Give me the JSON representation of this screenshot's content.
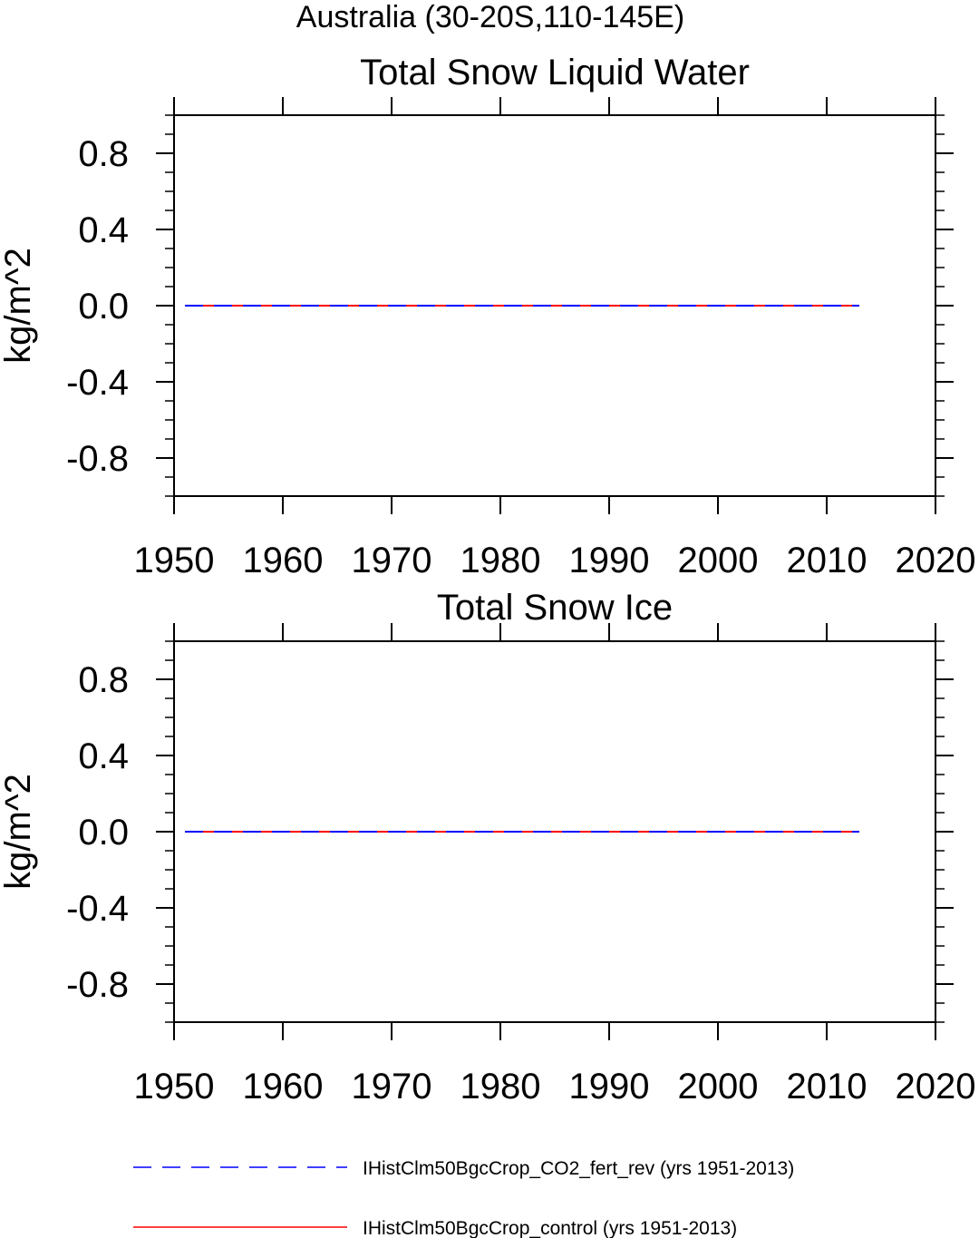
{
  "figure_title": "Australia (30-20S,110-145E)",
  "legend": {
    "items": [
      {
        "label": "IHistClm50BgcCrop_CO2_fert_rev (yrs 1951-2013)",
        "color": "#0000ff",
        "style": "dashed"
      },
      {
        "label": "IHistClm50BgcCrop_control (yrs 1951-2013)",
        "color": "#ff0000",
        "style": "solid"
      }
    ]
  },
  "chart_data": [
    {
      "type": "line",
      "title": "Total Snow Liquid Water",
      "xlabel": "",
      "ylabel": "kg/m^2",
      "xlim": [
        1950,
        2020
      ],
      "ylim": [
        -1.0,
        1.0
      ],
      "xticks": [
        1950,
        1960,
        1970,
        1980,
        1990,
        2000,
        2010,
        2020
      ],
      "yticks": [
        0.8,
        0.4,
        0.0,
        -0.4,
        -0.8
      ],
      "ytick_labels": [
        "0.8",
        "0.4",
        "0.0",
        "-0.4",
        "-0.8"
      ],
      "grid": false,
      "series": [
        {
          "name": "IHistClm50BgcCrop_CO2_fert_rev (yrs 1951-2013)",
          "color": "#0000ff",
          "style": "dashed",
          "x": [
            1951,
            2013
          ],
          "y": [
            0.0,
            0.0
          ]
        },
        {
          "name": "IHistClm50BgcCrop_control (yrs 1951-2013)",
          "color": "#ff0000",
          "style": "solid",
          "x": [
            1951,
            2013
          ],
          "y": [
            0.0,
            0.0
          ]
        }
      ]
    },
    {
      "type": "line",
      "title": "Total Snow Ice",
      "xlabel": "",
      "ylabel": "kg/m^2",
      "xlim": [
        1950,
        2020
      ],
      "ylim": [
        -1.0,
        1.0
      ],
      "xticks": [
        1950,
        1960,
        1970,
        1980,
        1990,
        2000,
        2010,
        2020
      ],
      "yticks": [
        0.8,
        0.4,
        0.0,
        -0.4,
        -0.8
      ],
      "ytick_labels": [
        "0.8",
        "0.4",
        "0.0",
        "-0.4",
        "-0.8"
      ],
      "grid": false,
      "series": [
        {
          "name": "IHistClm50BgcCrop_CO2_fert_rev (yrs 1951-2013)",
          "color": "#0000ff",
          "style": "dashed",
          "x": [
            1951,
            2013
          ],
          "y": [
            0.0,
            0.0
          ]
        },
        {
          "name": "IHistClm50BgcCrop_control (yrs 1951-2013)",
          "color": "#ff0000",
          "style": "solid",
          "x": [
            1951,
            2013
          ],
          "y": [
            0.0,
            0.0
          ]
        }
      ]
    }
  ]
}
